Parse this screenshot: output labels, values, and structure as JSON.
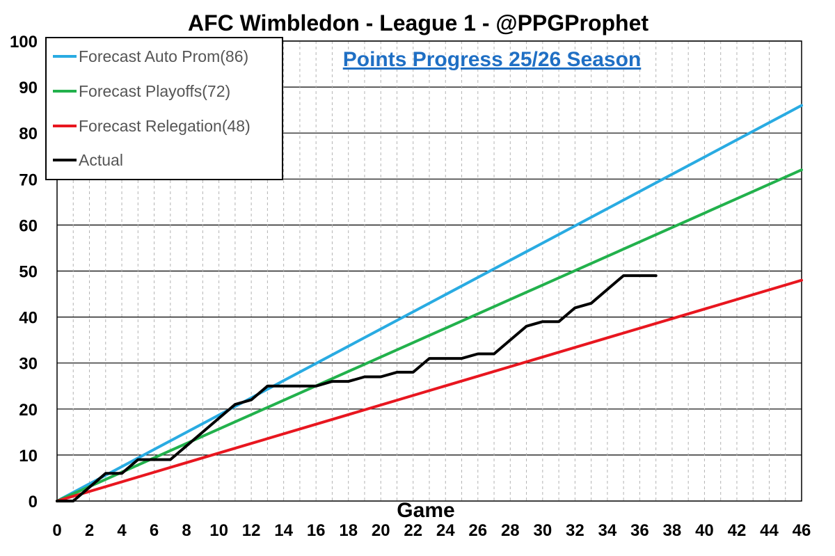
{
  "chart_data": {
    "type": "line",
    "title": "AFC Wimbledon - League 1 - @PPGProphet",
    "subtitle": "Points Progress 25/26 Season",
    "xlabel": "Game",
    "ylabel": "",
    "xlim": [
      0,
      46
    ],
    "ylim": [
      0,
      100
    ],
    "xticks": [
      0,
      2,
      4,
      6,
      8,
      10,
      12,
      14,
      16,
      18,
      20,
      22,
      24,
      26,
      28,
      30,
      32,
      34,
      36,
      38,
      40,
      42,
      44,
      46
    ],
    "yticks": [
      0,
      10,
      20,
      30,
      40,
      50,
      60,
      70,
      80,
      90,
      100
    ],
    "grid": true,
    "legend_position": "top-left",
    "series": [
      {
        "name": "Forecast Auto Prom(86)",
        "color": "#29abe2",
        "x": [
          0,
          46
        ],
        "y": [
          0,
          86
        ]
      },
      {
        "name": "Forecast Playoffs(72)",
        "color": "#22b14c",
        "x": [
          0,
          46
        ],
        "y": [
          0,
          72
        ]
      },
      {
        "name": "Forecast Relegation(48)",
        "color": "#e8161f",
        "x": [
          0,
          46
        ],
        "y": [
          0,
          48
        ]
      },
      {
        "name": "Actual",
        "color": "#000000",
        "x": [
          0,
          1,
          2,
          3,
          4,
          5,
          6,
          7,
          8,
          9,
          10,
          11,
          12,
          13,
          14,
          15,
          16,
          17,
          18,
          19,
          20,
          21,
          22,
          23,
          24,
          25,
          26,
          27,
          28,
          29,
          30,
          31,
          32,
          33,
          34,
          35,
          36,
          37
        ],
        "y": [
          0,
          0,
          3,
          6,
          6,
          9,
          9,
          9,
          12,
          15,
          18,
          21,
          22,
          25,
          25,
          25,
          25,
          26,
          26,
          27,
          27,
          28,
          28,
          31,
          31,
          31,
          32,
          32,
          35,
          38,
          39,
          39,
          42,
          43,
          46,
          49,
          49,
          49
        ]
      }
    ]
  }
}
